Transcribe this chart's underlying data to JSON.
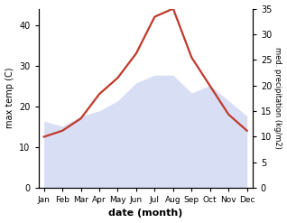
{
  "months": [
    "Jan",
    "Feb",
    "Mar",
    "Apr",
    "May",
    "Jun",
    "Jul",
    "Aug",
    "Sep",
    "Oct",
    "Nov",
    "Dec"
  ],
  "month_indices": [
    0,
    1,
    2,
    3,
    4,
    5,
    6,
    7,
    8,
    9,
    10,
    11
  ],
  "temperature": [
    12.5,
    14.0,
    17.0,
    23.0,
    27.0,
    33.0,
    42.0,
    44.0,
    32.0,
    25.0,
    18.0,
    14.0
  ],
  "precipitation": [
    13.0,
    12.0,
    14.0,
    15.0,
    17.0,
    20.5,
    22.0,
    22.0,
    18.5,
    20.0,
    17.0,
    14.0
  ],
  "temp_color": "#c0392b",
  "precip_fill_color": "#c8d0f0",
  "temp_ylim": [
    0,
    44
  ],
  "precip_ylim": [
    0,
    35
  ],
  "temp_yticks": [
    0,
    10,
    20,
    30,
    40
  ],
  "precip_yticks": [
    0,
    5,
    10,
    15,
    20,
    25,
    30,
    35
  ],
  "xlabel": "date (month)",
  "ylabel_left": "max temp (C)",
  "ylabel_right": "med. precipitation (kg/m2)",
  "bg_color": "#ffffff",
  "line_width": 1.6,
  "fill_alpha": 0.7
}
